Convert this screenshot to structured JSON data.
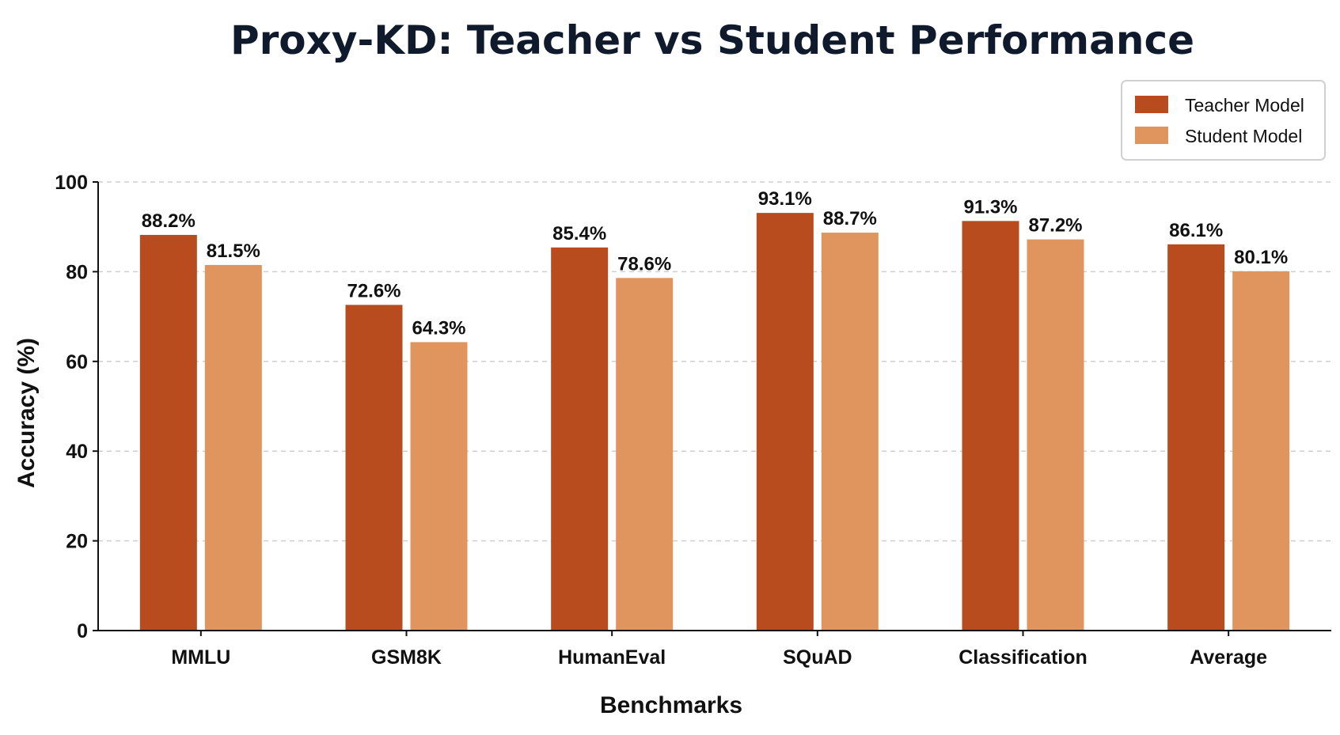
{
  "chart_data": {
    "type": "bar",
    "title": "Proxy-KD: Teacher vs Student Performance",
    "xlabel": "Benchmarks",
    "ylabel": "Accuracy (%)",
    "ylim": [
      0,
      100
    ],
    "yticks": [
      0,
      20,
      40,
      60,
      80,
      100
    ],
    "grid": "horizontal dashed",
    "legend_position": "top-right",
    "categories": [
      "MMLU",
      "GSM8K",
      "HumanEval",
      "SQuAD",
      "Classification",
      "Average"
    ],
    "series": [
      {
        "name": "Teacher Model",
        "color": "#b84c1f",
        "values": [
          88.2,
          72.6,
          85.4,
          93.1,
          91.3,
          86.1
        ],
        "labels": [
          "88.2%",
          "72.6%",
          "85.4%",
          "93.1%",
          "91.3%",
          "86.1%"
        ]
      },
      {
        "name": "Student Model",
        "color": "#e0955f",
        "values": [
          81.5,
          64.3,
          78.6,
          88.7,
          87.2,
          80.1
        ],
        "labels": [
          "81.5%",
          "64.3%",
          "78.6%",
          "88.7%",
          "87.2%",
          "80.1%"
        ]
      }
    ]
  }
}
